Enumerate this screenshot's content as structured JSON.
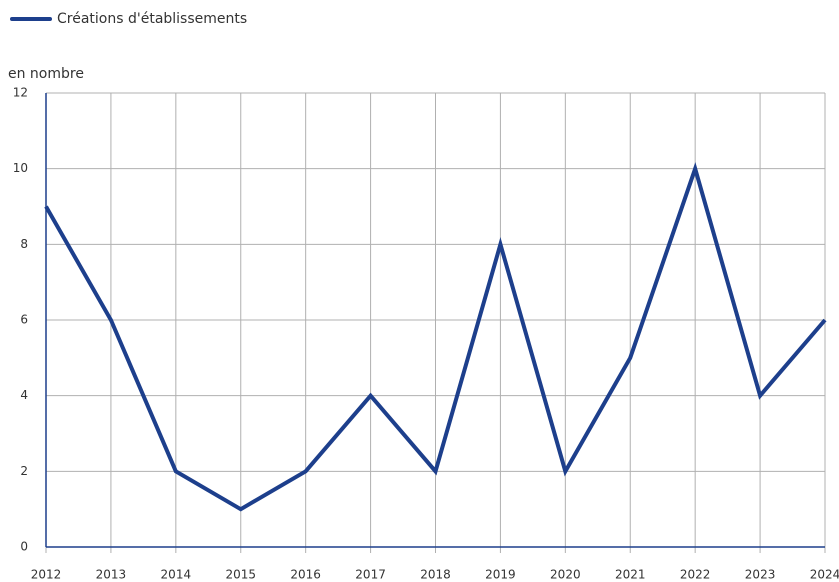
{
  "chart_data": {
    "type": "line",
    "y_axis_label": "en nombre",
    "x": [
      2012,
      2013,
      2014,
      2015,
      2016,
      2017,
      2018,
      2019,
      2020,
      2021,
      2022,
      2023,
      2024
    ],
    "series": [
      {
        "name": "Créations d'établissements",
        "color": "#1d3f8c",
        "values": [
          9,
          6,
          2,
          1,
          2,
          4,
          2,
          8,
          2,
          5,
          10,
          4,
          6
        ]
      }
    ],
    "xlim": [
      2012,
      2024
    ],
    "xticks": [
      2012,
      2013,
      2014,
      2015,
      2016,
      2017,
      2018,
      2019,
      2020,
      2021,
      2022,
      2023,
      2024
    ],
    "ylim": [
      0,
      12
    ],
    "yticks": [
      0,
      2,
      4,
      6,
      8,
      10,
      12
    ],
    "grid": true,
    "legend": "top-left"
  }
}
